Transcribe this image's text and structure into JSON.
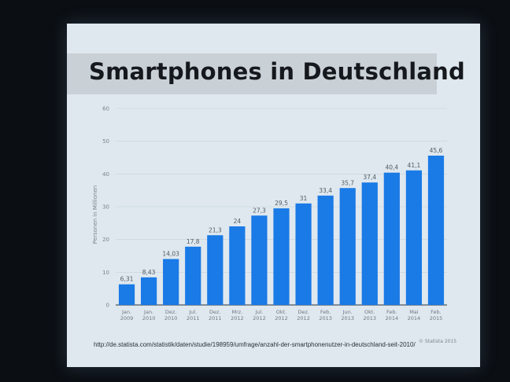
{
  "slide": {
    "title": "Smartphones in Deutschland",
    "source_url": "http://de.statista.com/statistik/daten/studie/198959/umfrage/anzahl-der-smartphonenutzer-in-deutschland-seit-2010/",
    "copyright": "© Statista 2015"
  },
  "chart_data": {
    "type": "bar",
    "title": "Smartphones in Deutschland",
    "xlabel": "",
    "ylabel": "Personen in Millionen",
    "ylim": [
      0,
      60
    ],
    "yticks": [
      0,
      10,
      20,
      30,
      40,
      50,
      60
    ],
    "grid": true,
    "bar_color": "#1a7ae6",
    "categories": [
      [
        "Jan.",
        "2009"
      ],
      [
        "Jan.",
        "2010"
      ],
      [
        "Dez.",
        "2010"
      ],
      [
        "Jul.",
        "2011"
      ],
      [
        "Dez.",
        "2011"
      ],
      [
        "Mrz.",
        "2012"
      ],
      [
        "Jul.",
        "2012"
      ],
      [
        "Okt.",
        "2012"
      ],
      [
        "Dez.",
        "2012"
      ],
      [
        "Feb.",
        "2013"
      ],
      [
        "Jun.",
        "2013"
      ],
      [
        "Okt.",
        "2013"
      ],
      [
        "Feb.",
        "2014"
      ],
      [
        "Mai",
        "2014"
      ],
      [
        "Feb.",
        "2015"
      ]
    ],
    "values": [
      6.31,
      8.43,
      14.03,
      17.8,
      21.3,
      24,
      27.3,
      29.5,
      31,
      33.4,
      35.7,
      37.4,
      40.4,
      41.1,
      45.6
    ],
    "value_labels": [
      "6,31",
      "8,43",
      "14,03",
      "17,8",
      "21,3",
      "24",
      "27,3",
      "29,5",
      "31",
      "33,4",
      "35,7",
      "37,4",
      "40,4",
      "41,1",
      "45,6"
    ]
  }
}
